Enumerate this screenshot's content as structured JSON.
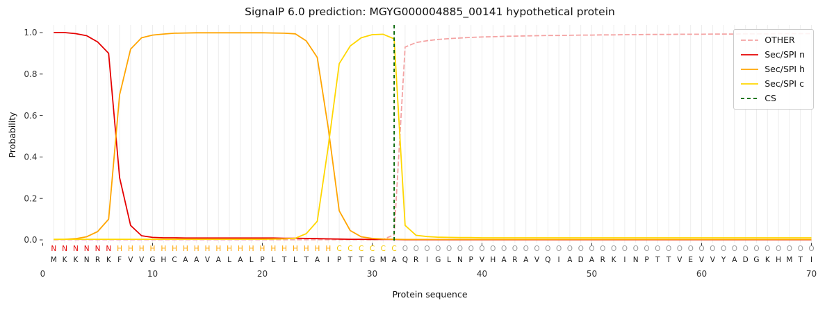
{
  "chart_data": {
    "type": "line",
    "title": "SignalP 6.0 prediction: MGYG000004885_00141 hypothetical protein",
    "xlabel": "Protein sequence",
    "ylabel": "Probability",
    "x_ticks": [
      0,
      10,
      20,
      30,
      40,
      50,
      60,
      70
    ],
    "y_ticks": [
      0.0,
      0.2,
      0.4,
      0.6,
      0.8,
      1.0
    ],
    "xlim": [
      0,
      70.5
    ],
    "ylim": [
      -0.02,
      1.05
    ],
    "grid": "vertical-per-residue",
    "legend_position": "upper right",
    "sequence": "MKKNRKFVVGHCAAVALALPLTLTAIPTTGMAQRIGLNPVHARAVQIADARKINPTTVEVVYADGKHMTI",
    "residue_labels": "NNNNNNHHHHHHHHHHHHHHHHHHHHCCCCCCOOOOOOOOOOOOOOOOOOOOOOOOOOOOOOOOOOOOOO",
    "label_colors": {
      "N": "#e50000",
      "H": "#ffa500",
      "C": "#f5c800",
      "O": "#999999"
    },
    "cs": {
      "label": "CS",
      "position": 32,
      "color": "#006400",
      "dash": "5 4"
    },
    "series": [
      {
        "name": "OTHER",
        "color": "#f4a3a3",
        "dash": "7 3",
        "values": [
          0.001,
          0.001,
          0.001,
          0.001,
          0.001,
          0.001,
          0.001,
          0.001,
          0.001,
          0.001,
          0.001,
          0.001,
          0.001,
          0.001,
          0.001,
          0.001,
          0.001,
          0.001,
          0.001,
          0.001,
          0.001,
          0.001,
          0.001,
          0.001,
          0.001,
          0.001,
          0.001,
          0.001,
          0.001,
          0.001,
          0.002,
          0.025,
          0.93,
          0.952,
          0.961,
          0.967,
          0.971,
          0.974,
          0.977,
          0.979,
          0.98,
          0.982,
          0.983,
          0.984,
          0.985,
          0.986,
          0.986,
          0.987,
          0.988,
          0.988,
          0.989,
          0.989,
          0.99,
          0.99,
          0.991,
          0.991,
          0.991,
          0.992,
          0.992,
          0.992,
          0.993,
          0.993,
          0.993,
          0.994,
          0.994,
          0.994,
          0.995,
          0.995,
          0.995,
          0.995
        ]
      },
      {
        "name": "Sec/SPI n",
        "color": "#e50000",
        "dash": "",
        "values": [
          1.0,
          1.0,
          0.995,
          0.985,
          0.955,
          0.9,
          0.3,
          0.07,
          0.02,
          0.012,
          0.01,
          0.01,
          0.009,
          0.009,
          0.009,
          0.009,
          0.009,
          0.009,
          0.009,
          0.009,
          0.009,
          0.008,
          0.008,
          0.007,
          0.006,
          0.005,
          0.004,
          0.003,
          0.003,
          0.002,
          0.002,
          0.002,
          0.001,
          0.001,
          0.001,
          0.001,
          0.001,
          0.001,
          0.001,
          0.001,
          0.001,
          0.001,
          0.001,
          0.001,
          0.001,
          0.001,
          0.001,
          0.001,
          0.001,
          0.001,
          0.001,
          0.001,
          0.001,
          0.001,
          0.001,
          0.001,
          0.001,
          0.001,
          0.001,
          0.001,
          0.001,
          0.001,
          0.001,
          0.001,
          0.001,
          0.001,
          0.001,
          0.001,
          0.001,
          0.001
        ]
      },
      {
        "name": "Sec/SPI h",
        "color": "#ffa500",
        "dash": "",
        "values": [
          0.002,
          0.003,
          0.006,
          0.015,
          0.04,
          0.1,
          0.7,
          0.92,
          0.975,
          0.988,
          0.993,
          0.997,
          0.998,
          0.999,
          0.999,
          0.999,
          0.999,
          0.999,
          0.999,
          0.999,
          0.998,
          0.997,
          0.994,
          0.96,
          0.88,
          0.54,
          0.14,
          0.045,
          0.015,
          0.007,
          0.004,
          0.003,
          0.002,
          0.002,
          0.002,
          0.002,
          0.002,
          0.002,
          0.002,
          0.002,
          0.002,
          0.002,
          0.002,
          0.002,
          0.002,
          0.002,
          0.002,
          0.002,
          0.002,
          0.002,
          0.002,
          0.002,
          0.002,
          0.002,
          0.002,
          0.002,
          0.002,
          0.002,
          0.002,
          0.002,
          0.002,
          0.002,
          0.002,
          0.002,
          0.002,
          0.002,
          0.002,
          0.002,
          0.002,
          0.002
        ]
      },
      {
        "name": "Sec/SPI c",
        "color": "#ffd700",
        "dash": "",
        "values": [
          0.003,
          0.003,
          0.003,
          0.003,
          0.003,
          0.003,
          0.003,
          0.003,
          0.003,
          0.003,
          0.003,
          0.003,
          0.003,
          0.003,
          0.003,
          0.003,
          0.003,
          0.003,
          0.003,
          0.003,
          0.004,
          0.005,
          0.008,
          0.03,
          0.09,
          0.45,
          0.85,
          0.935,
          0.975,
          0.99,
          0.992,
          0.97,
          0.07,
          0.022,
          0.016,
          0.013,
          0.012,
          0.011,
          0.011,
          0.01,
          0.01,
          0.01,
          0.01,
          0.01,
          0.01,
          0.01,
          0.01,
          0.01,
          0.01,
          0.01,
          0.01,
          0.01,
          0.01,
          0.01,
          0.01,
          0.01,
          0.01,
          0.01,
          0.01,
          0.01,
          0.01,
          0.01,
          0.01,
          0.01,
          0.01,
          0.01,
          0.01,
          0.01,
          0.01,
          0.01
        ]
      }
    ],
    "legend": [
      {
        "label": "OTHER",
        "color": "#f4a3a3",
        "dash": "7 3"
      },
      {
        "label": "Sec/SPI n",
        "color": "#e50000",
        "dash": ""
      },
      {
        "label": "Sec/SPI h",
        "color": "#ffa500",
        "dash": ""
      },
      {
        "label": "Sec/SPI c",
        "color": "#ffd700",
        "dash": ""
      },
      {
        "label": "CS",
        "color": "#006400",
        "dash": "5 4"
      }
    ],
    "style": {
      "grid_color": "#ededed",
      "tick_color": "#333333",
      "sequence_color": "#1a1a1a",
      "legend_border": "#cccccc"
    }
  }
}
